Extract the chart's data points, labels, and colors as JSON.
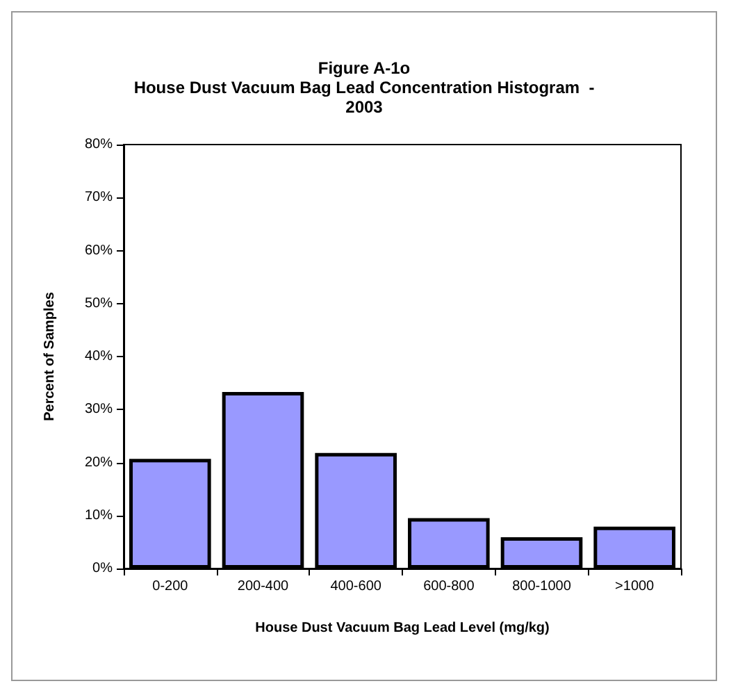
{
  "chart_data": {
    "type": "bar",
    "title": "Figure A-1o\nHouse Dust Vacuum Bag Lead Concentration Histogram  -\n2003",
    "xlabel": "House Dust Vacuum Bag Lead Level (mg/kg)",
    "ylabel": "Percent of Samples",
    "categories": [
      "0-200",
      "200-400",
      "400-600",
      "600-800",
      "800-1000",
      ">1000"
    ],
    "values": [
      20.7,
      33.3,
      21.8,
      9.5,
      5.9,
      7.9
    ],
    "color": "#9999ff",
    "ylim": [
      0,
      80
    ],
    "yticks": [
      {
        "value": 0,
        "label": "0%"
      },
      {
        "value": 10,
        "label": "10%"
      },
      {
        "value": 20,
        "label": "20%"
      },
      {
        "value": 30,
        "label": "30%"
      },
      {
        "value": 40,
        "label": "40%"
      },
      {
        "value": 50,
        "label": "50%"
      },
      {
        "value": 60,
        "label": "60%"
      },
      {
        "value": 70,
        "label": "70%"
      },
      {
        "value": 80,
        "label": "80%"
      }
    ],
    "grid": false
  }
}
